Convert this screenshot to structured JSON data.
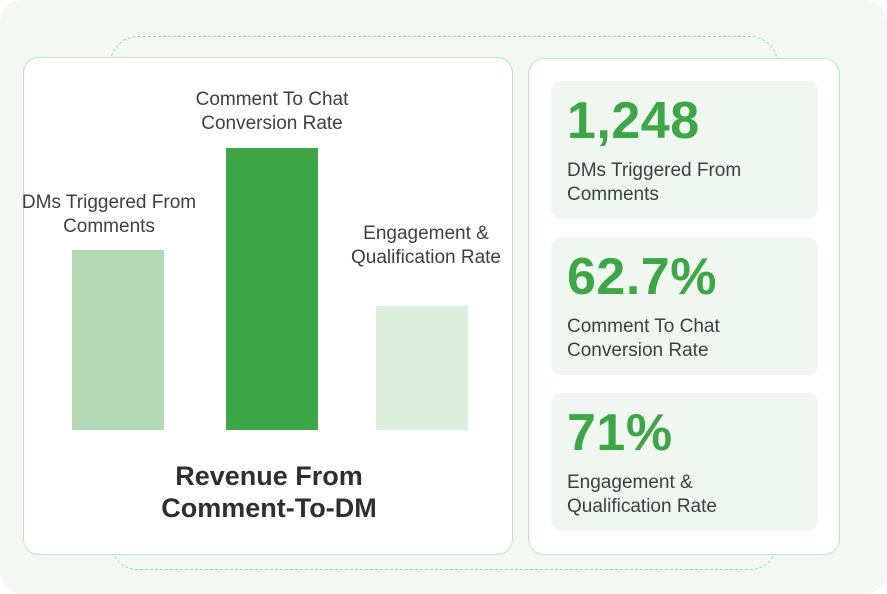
{
  "colors": {
    "accent": "#3ea646",
    "bar_light": "#b3d8b6",
    "bar_lighter": "#dcefdd",
    "text": "#3f3f3f"
  },
  "chart_data": {
    "type": "bar",
    "title": "Revenue From Comment-To-DM",
    "categories": [
      "DMs Triggered From Comments",
      "Comment To Chat Conversion Rate",
      "Engagement & Qualification Rate"
    ],
    "values": [
      1248,
      62.7,
      71
    ],
    "display_values": [
      "1,248",
      "62.7%",
      "71%"
    ],
    "bar_colors": [
      "#b3d8b6",
      "#3ea646",
      "#dcefdd"
    ],
    "xlabel": "",
    "ylabel": "",
    "grid": false,
    "legend": "none"
  },
  "stats": [
    {
      "value": "1,248",
      "label": "DMs Triggered From Comments"
    },
    {
      "value": "62.7%",
      "label": "Comment To Chat Conversion Rate"
    },
    {
      "value": "71%",
      "label": "Engagement & Qualification Rate"
    }
  ]
}
